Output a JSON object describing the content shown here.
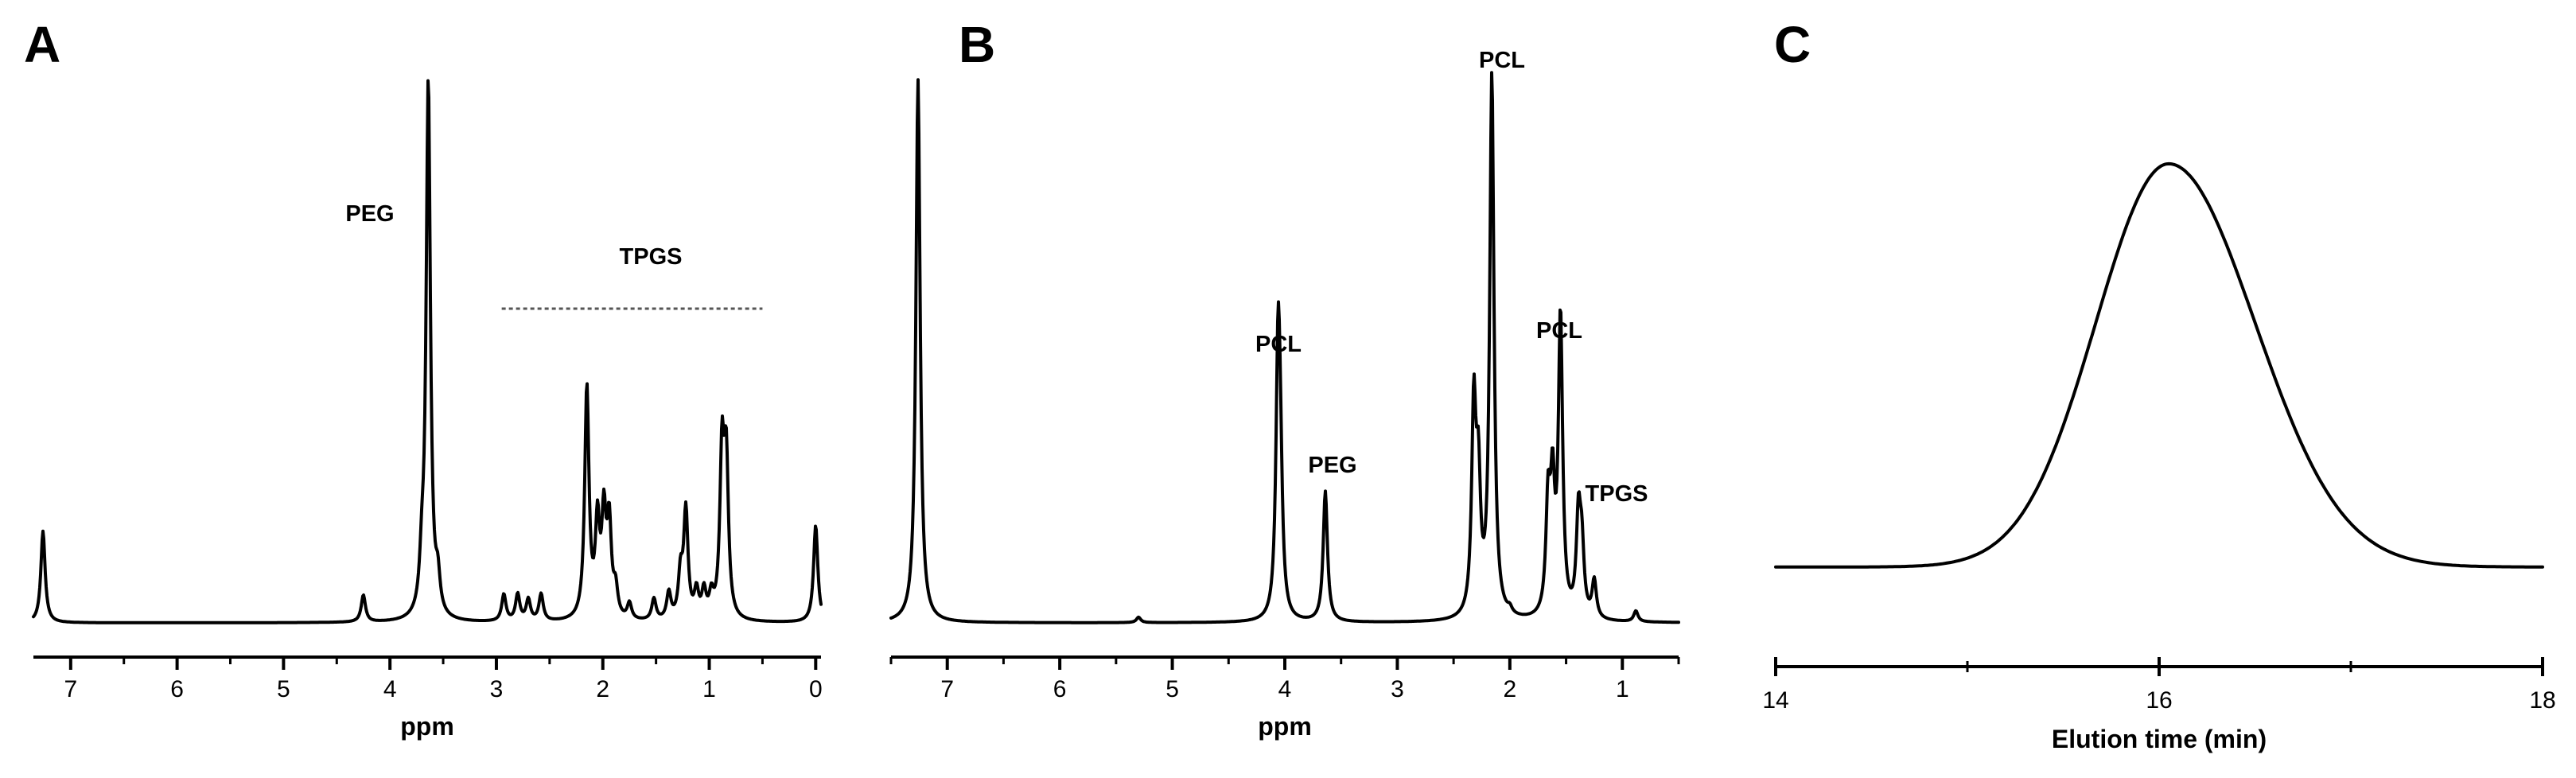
{
  "chart_data": [
    {
      "panel": "A",
      "type": "line",
      "xlabel": "ppm",
      "xlim": [
        7.35,
        -0.05
      ],
      "xticks": [
        "7",
        "6",
        "5",
        "4",
        "3",
        "2",
        "1",
        "0"
      ],
      "peaks": [
        {
          "x": 7.26,
          "h": 0.17
        },
        {
          "x": 4.25,
          "h": 0.05
        },
        {
          "x": 3.7,
          "h": 0.08
        },
        {
          "x": 3.64,
          "h": 1.0
        },
        {
          "x": 3.55,
          "h": 0.06
        },
        {
          "x": 2.93,
          "h": 0.05
        },
        {
          "x": 2.8,
          "h": 0.05
        },
        {
          "x": 2.7,
          "h": 0.04
        },
        {
          "x": 2.58,
          "h": 0.05
        },
        {
          "x": 2.15,
          "h": 0.43
        },
        {
          "x": 2.05,
          "h": 0.17
        },
        {
          "x": 1.99,
          "h": 0.18
        },
        {
          "x": 1.94,
          "h": 0.17
        },
        {
          "x": 1.88,
          "h": 0.05
        },
        {
          "x": 1.75,
          "h": 0.03
        },
        {
          "x": 1.52,
          "h": 0.04
        },
        {
          "x": 1.38,
          "h": 0.05
        },
        {
          "x": 1.27,
          "h": 0.08
        },
        {
          "x": 1.22,
          "h": 0.2
        },
        {
          "x": 1.12,
          "h": 0.05
        },
        {
          "x": 1.05,
          "h": 0.05
        },
        {
          "x": 0.98,
          "h": 0.04
        },
        {
          "x": 0.88,
          "h": 0.3
        },
        {
          "x": 0.84,
          "h": 0.28
        },
        {
          "x": 0.0,
          "h": 0.18
        }
      ],
      "annotations": [
        {
          "text": "PEG",
          "x": 4.3,
          "y": 0.75
        },
        {
          "text": "TPGS",
          "x": 1.6,
          "y": 0.67
        }
      ],
      "span": {
        "label": "TPGS",
        "from": 2.95,
        "to": 0.5
      }
    },
    {
      "panel": "B",
      "type": "line",
      "xlabel": "ppm",
      "xlim": [
        7.5,
        0.5
      ],
      "xticks": [
        "7",
        "6",
        "5",
        "4",
        "3",
        "2",
        "1"
      ],
      "peaks": [
        {
          "x": 7.26,
          "h": 1.0
        },
        {
          "x": 5.3,
          "h": 0.01
        },
        {
          "x": 4.06,
          "h": 0.47
        },
        {
          "x": 4.04,
          "h": 0.2
        },
        {
          "x": 3.64,
          "h": 0.24
        },
        {
          "x": 2.32,
          "h": 0.38
        },
        {
          "x": 2.28,
          "h": 0.23
        },
        {
          "x": 2.16,
          "h": 1.0
        },
        {
          "x": 2.0,
          "h": 0.01
        },
        {
          "x": 1.66,
          "h": 0.2
        },
        {
          "x": 1.62,
          "h": 0.22
        },
        {
          "x": 1.55,
          "h": 0.55
        },
        {
          "x": 1.39,
          "h": 0.18
        },
        {
          "x": 1.36,
          "h": 0.12
        },
        {
          "x": 1.25,
          "h": 0.07
        },
        {
          "x": 0.88,
          "h": 0.02
        }
      ],
      "annotations": [
        {
          "text": "PCL",
          "x": 4.05,
          "y": 0.49
        },
        {
          "text": "PEG",
          "x": 3.64,
          "y": 0.28
        },
        {
          "text": "PCL",
          "x": 2.16,
          "y": 1.03
        },
        {
          "text": "PCL",
          "x": 1.55,
          "y": 0.57
        },
        {
          "text": "TPGS",
          "x": 1.0,
          "y": 0.24
        }
      ]
    },
    {
      "panel": "C",
      "type": "line",
      "xlabel": "Elution time (min)",
      "xlim": [
        14,
        18
      ],
      "xticks": [
        "14",
        "16",
        "18"
      ],
      "peak": {
        "center": 16.05,
        "sigma_left": 0.38,
        "sigma_right": 0.45,
        "height": 0.93,
        "baseline": 0.05
      }
    }
  ]
}
